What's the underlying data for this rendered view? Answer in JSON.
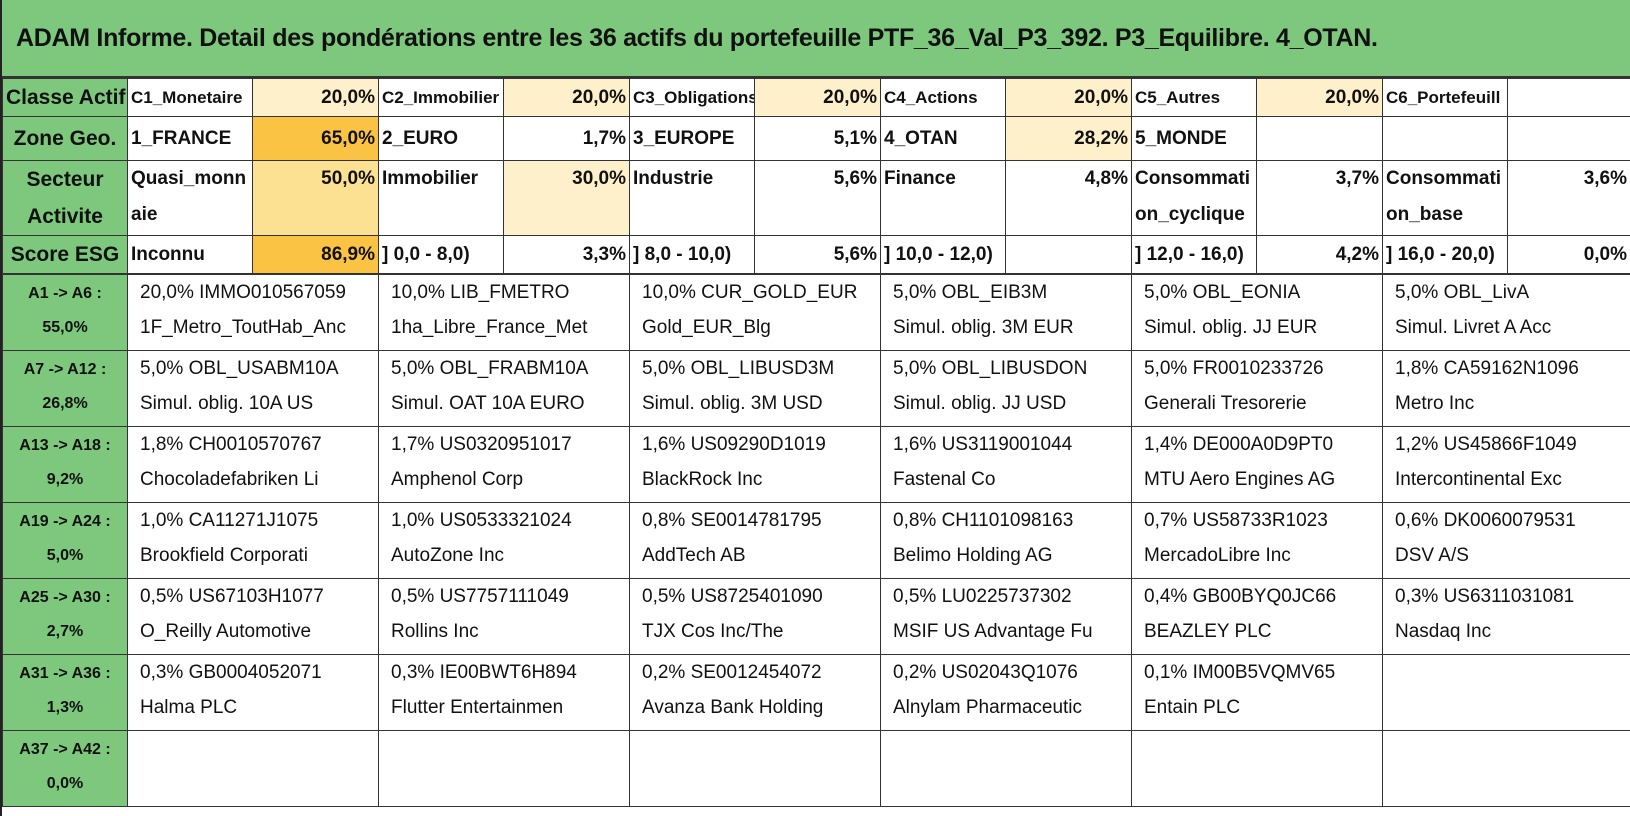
{
  "title": "ADAM Informe. Detail des pondérations entre les 36 actifs du portefeuille PTF_36_Val_P3_392. P3_Equilibre. 4_OTAN.",
  "classe_actif": {
    "label": "Classe Actif",
    "items": [
      {
        "name": "C1_Monetaire",
        "value": "20,0%"
      },
      {
        "name": "C2_Immobilier",
        "value": "20,0%"
      },
      {
        "name": "C3_Obligations",
        "value": "20,0%"
      },
      {
        "name": "C4_Actions",
        "value": "20,0%"
      },
      {
        "name": "C5_Autres",
        "value": "20,0%"
      },
      {
        "name": "C6_Portefeuill",
        "value": ""
      }
    ]
  },
  "zone_geo": {
    "label": "Zone Geo.",
    "items": [
      {
        "name": "1_FRANCE",
        "value": "65,0%"
      },
      {
        "name": "2_EURO",
        "value": "1,7%"
      },
      {
        "name": "3_EUROPE",
        "value": "5,1%"
      },
      {
        "name": "4_OTAN",
        "value": "28,2%"
      },
      {
        "name": "5_MONDE",
        "value": ""
      },
      {
        "name": "",
        "value": ""
      }
    ]
  },
  "secteur": {
    "label_1": "Secteur",
    "label_2": "Activite",
    "items": [
      {
        "name": "Quasi_monnaie",
        "value": "50,0%"
      },
      {
        "name": "Immobilier",
        "value": "30,0%"
      },
      {
        "name": "Industrie",
        "value": "5,6%"
      },
      {
        "name": "Finance",
        "value": "4,8%"
      },
      {
        "name": "Consommation_cyclique",
        "value": "3,7%"
      },
      {
        "name": "Consommation_base",
        "value": "3,6%"
      }
    ]
  },
  "score_esg": {
    "label": "Score ESG",
    "items": [
      {
        "name": "Inconnu",
        "value": "86,9%"
      },
      {
        "name": "] 0,0 - 8,0)",
        "value": "3,3%"
      },
      {
        "name": "] 8,0 - 10,0)",
        "value": "5,6%"
      },
      {
        "name": "] 10,0 - 12,0)",
        "value": ""
      },
      {
        "name": "] 12,0 - 16,0)",
        "value": "4,2%"
      },
      {
        "name": "] 16,0 - 20,0)",
        "value": "0,0%"
      }
    ]
  },
  "groups": [
    {
      "range": "A1 -> A6 :",
      "total": "55,0%",
      "assets": [
        {
          "line1": "20,0% IMMO010567059",
          "line2": "1F_Metro_ToutHab_Anc"
        },
        {
          "line1": "10,0% LIB_FMETRO",
          "line2": "1ha_Libre_France_Met"
        },
        {
          "line1": "10,0% CUR_GOLD_EUR",
          "line2": "Gold_EUR_Blg"
        },
        {
          "line1": "5,0% OBL_EIB3M",
          "line2": "Simul. oblig. 3M EUR"
        },
        {
          "line1": "5,0% OBL_EONIA",
          "line2": "Simul. oblig. JJ EUR"
        },
        {
          "line1": "5,0% OBL_LivA",
          "line2": "Simul. Livret A Acc"
        }
      ]
    },
    {
      "range": "A7 -> A12 :",
      "total": "26,8%",
      "assets": [
        {
          "line1": "5,0% OBL_USABM10A",
          "line2": "Simul. oblig. 10A US"
        },
        {
          "line1": "5,0% OBL_FRABM10A",
          "line2": "Simul. OAT 10A EURO"
        },
        {
          "line1": "5,0% OBL_LIBUSD3M",
          "line2": "Simul. oblig. 3M USD"
        },
        {
          "line1": "5,0% OBL_LIBUSDON",
          "line2": "Simul. oblig. JJ USD"
        },
        {
          "line1": "5,0% FR0010233726",
          "line2": "Generali Tresorerie"
        },
        {
          "line1": "1,8% CA59162N1096",
          "line2": "Metro Inc"
        }
      ]
    },
    {
      "range": "A13 -> A18 :",
      "total": "9,2%",
      "assets": [
        {
          "line1": "1,8% CH0010570767",
          "line2": "Chocoladefabriken Li"
        },
        {
          "line1": "1,7% US0320951017",
          "line2": "Amphenol Corp"
        },
        {
          "line1": "1,6% US09290D1019",
          "line2": "BlackRock Inc"
        },
        {
          "line1": "1,6% US3119001044",
          "line2": "Fastenal Co"
        },
        {
          "line1": "1,4% DE000A0D9PT0",
          "line2": "MTU Aero Engines AG"
        },
        {
          "line1": "1,2% US45866F1049",
          "line2": "Intercontinental Exc"
        }
      ]
    },
    {
      "range": "A19 -> A24 :",
      "total": "5,0%",
      "assets": [
        {
          "line1": "1,0% CA11271J1075",
          "line2": "Brookfield Corporati"
        },
        {
          "line1": "1,0% US0533321024",
          "line2": "AutoZone Inc"
        },
        {
          "line1": "0,8% SE0014781795",
          "line2": "AddTech AB"
        },
        {
          "line1": "0,8% CH1101098163",
          "line2": "Belimo Holding AG"
        },
        {
          "line1": "0,7% US58733R1023",
          "line2": "MercadoLibre Inc"
        },
        {
          "line1": "0,6% DK0060079531",
          "line2": "DSV A/S"
        }
      ]
    },
    {
      "range": "A25 -> A30 :",
      "total": "2,7%",
      "assets": [
        {
          "line1": "0,5% US67103H1077",
          "line2": "O_Reilly Automotive"
        },
        {
          "line1": "0,5% US7757111049",
          "line2": "Rollins Inc"
        },
        {
          "line1": "0,5% US8725401090",
          "line2": "TJX Cos Inc/The"
        },
        {
          "line1": "0,5% LU0225737302",
          "line2": "MSIF US Advantage Fu"
        },
        {
          "line1": "0,4% GB00BYQ0JC66",
          "line2": "BEAZLEY PLC"
        },
        {
          "line1": "0,3% US6311031081",
          "line2": "Nasdaq Inc"
        }
      ]
    },
    {
      "range": "A31 -> A36 :",
      "total": "1,3%",
      "assets": [
        {
          "line1": "0,3% GB0004052071",
          "line2": "Halma PLC"
        },
        {
          "line1": "0,3% IE00BWT6H894",
          "line2": "Flutter Entertainmen"
        },
        {
          "line1": "0,2% SE0012454072",
          "line2": "Avanza Bank Holding"
        },
        {
          "line1": "0,2% US02043Q1076",
          "line2": "Alnylam Pharmaceutic"
        },
        {
          "line1": "0,1% IM00B5VQMV65",
          "line2": "Entain PLC"
        },
        {
          "line1": "",
          "line2": ""
        }
      ]
    },
    {
      "range": "A37 -> A42 :",
      "total": "0,0%",
      "assets": [
        {
          "line1": "",
          "line2": ""
        },
        {
          "line1": "",
          "line2": ""
        },
        {
          "line1": "",
          "line2": ""
        },
        {
          "line1": "",
          "line2": ""
        },
        {
          "line1": "",
          "line2": ""
        },
        {
          "line1": "",
          "line2": ""
        }
      ]
    }
  ]
}
